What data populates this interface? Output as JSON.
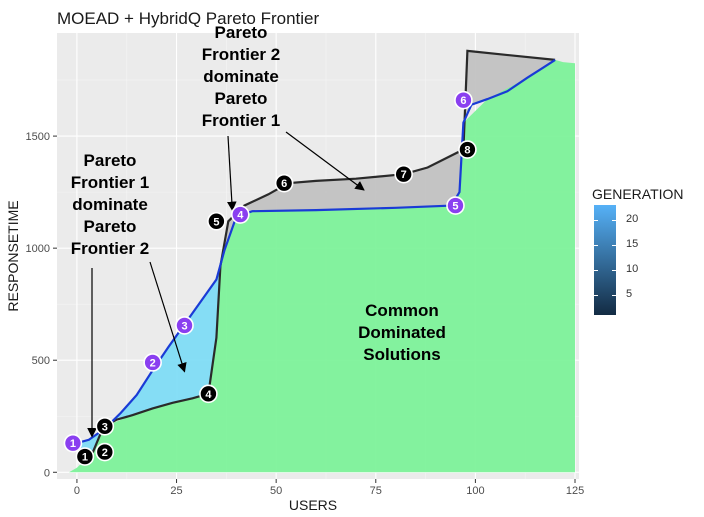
{
  "chart_data": {
    "type": "area",
    "title": "MOEAD + HybridQ Pareto Frontier",
    "xlabel": "USERS",
    "ylabel": "RESPONSETIME",
    "xlim": [
      -5,
      126
    ],
    "ylim": [
      -30,
      1960
    ],
    "x_ticks": [
      0,
      25,
      50,
      75,
      100,
      125
    ],
    "y_ticks": [
      0,
      500,
      1000,
      1500
    ],
    "grid": true,
    "series": [
      {
        "name": "Pareto Frontier 1",
        "color": "#1a3bd6",
        "fill": "#7fdcf5",
        "points": [
          [
            0,
            130
          ],
          [
            3,
            145
          ],
          [
            7,
            195
          ],
          [
            11,
            265
          ],
          [
            15,
            345
          ],
          [
            19,
            455
          ],
          [
            23,
            560
          ],
          [
            27,
            660
          ],
          [
            31,
            760
          ],
          [
            35,
            860
          ],
          [
            37,
            990
          ],
          [
            40,
            1140
          ],
          [
            44,
            1165
          ],
          [
            60,
            1170
          ],
          [
            80,
            1180
          ],
          [
            94,
            1190
          ],
          [
            96,
            1250
          ],
          [
            97,
            1560
          ],
          [
            99,
            1640
          ],
          [
            103,
            1665
          ],
          [
            108,
            1700
          ],
          [
            113,
            1760
          ],
          [
            117,
            1805
          ],
          [
            120,
            1840
          ]
        ]
      },
      {
        "name": "Pareto Frontier 2",
        "color": "#2a2a2a",
        "fill": "#c2c2c2",
        "points": [
          [
            2,
            70
          ],
          [
            4,
            90
          ],
          [
            6,
            175
          ],
          [
            7,
            205
          ],
          [
            10,
            235
          ],
          [
            14,
            255
          ],
          [
            19,
            285
          ],
          [
            24,
            310
          ],
          [
            29,
            330
          ],
          [
            33,
            350
          ],
          [
            35,
            600
          ],
          [
            36,
            920
          ],
          [
            38,
            1120
          ],
          [
            42,
            1190
          ],
          [
            48,
            1240
          ],
          [
            53,
            1290
          ],
          [
            60,
            1300
          ],
          [
            70,
            1310
          ],
          [
            82,
            1330
          ],
          [
            88,
            1360
          ],
          [
            97,
            1440
          ],
          [
            98,
            1880
          ],
          [
            120,
            1840
          ]
        ]
      },
      {
        "name": "Common Dominated Solutions",
        "color": "#7df29a",
        "points": [
          [
            -2,
            0
          ],
          [
            0,
            20
          ],
          [
            4,
            90
          ],
          [
            7,
            205
          ],
          [
            14,
            255
          ],
          [
            24,
            310
          ],
          [
            33,
            350
          ],
          [
            35,
            600
          ],
          [
            36,
            920
          ],
          [
            37,
            990
          ],
          [
            40,
            1140
          ],
          [
            44,
            1165
          ],
          [
            60,
            1170
          ],
          [
            80,
            1180
          ],
          [
            94,
            1190
          ],
          [
            96,
            1250
          ],
          [
            97,
            1560
          ],
          [
            103,
            1665
          ],
          [
            113,
            1760
          ],
          [
            120,
            1840
          ],
          [
            122,
            1830
          ],
          [
            125,
            1825
          ],
          [
            125,
            0
          ]
        ]
      }
    ],
    "labeled_points": [
      {
        "label": "1",
        "x": -1,
        "y": 130,
        "generation": 1
      },
      {
        "label": "2",
        "x": 19,
        "y": 490,
        "generation": 2
      },
      {
        "label": "3",
        "x": 27,
        "y": 655,
        "generation": 3
      },
      {
        "label": "4",
        "x": 41,
        "y": 1150,
        "generation": 4
      },
      {
        "label": "5",
        "x": 95,
        "y": 1190,
        "generation": 5
      },
      {
        "label": "6",
        "x": 97,
        "y": 1660,
        "generation": 6
      },
      {
        "label": "1",
        "x": 2,
        "y": 70,
        "generation": 1
      },
      {
        "label": "2",
        "x": 7,
        "y": 90,
        "generation": 2
      },
      {
        "label": "3",
        "x": 7,
        "y": 205,
        "generation": 3
      },
      {
        "label": "4",
        "x": 33,
        "y": 350,
        "generation": 4
      },
      {
        "label": "5",
        "x": 35,
        "y": 1120,
        "generation": 5
      },
      {
        "label": "6",
        "x": 52,
        "y": 1290,
        "generation": 6
      },
      {
        "label": "7",
        "x": 82,
        "y": 1330,
        "generation": 7
      },
      {
        "label": "8",
        "x": 98,
        "y": 1440,
        "generation": 8
      }
    ],
    "annotations": [
      {
        "text": "Pareto Frontier 1 dominate Pareto Frontier 2",
        "lines": [
          "Pareto",
          "Frontier 1",
          "dominate",
          "Pareto",
          "Frontier 2"
        ]
      },
      {
        "text": "Pareto Frontier 2 dominate Pareto Frontier 1",
        "lines": [
          "Pareto",
          "Frontier 2",
          "dominate",
          "Pareto",
          "Frontier 1"
        ]
      },
      {
        "text": "Common Dominated Solutions",
        "lines": [
          "Common",
          "Dominated",
          "Solutions"
        ]
      }
    ],
    "legend": {
      "title": "GENERATION",
      "position": "right",
      "colors": [
        "#132b43",
        "#56b1f7"
      ],
      "ticks": [
        5,
        10,
        15,
        20
      ],
      "range": [
        1,
        23
      ]
    }
  }
}
